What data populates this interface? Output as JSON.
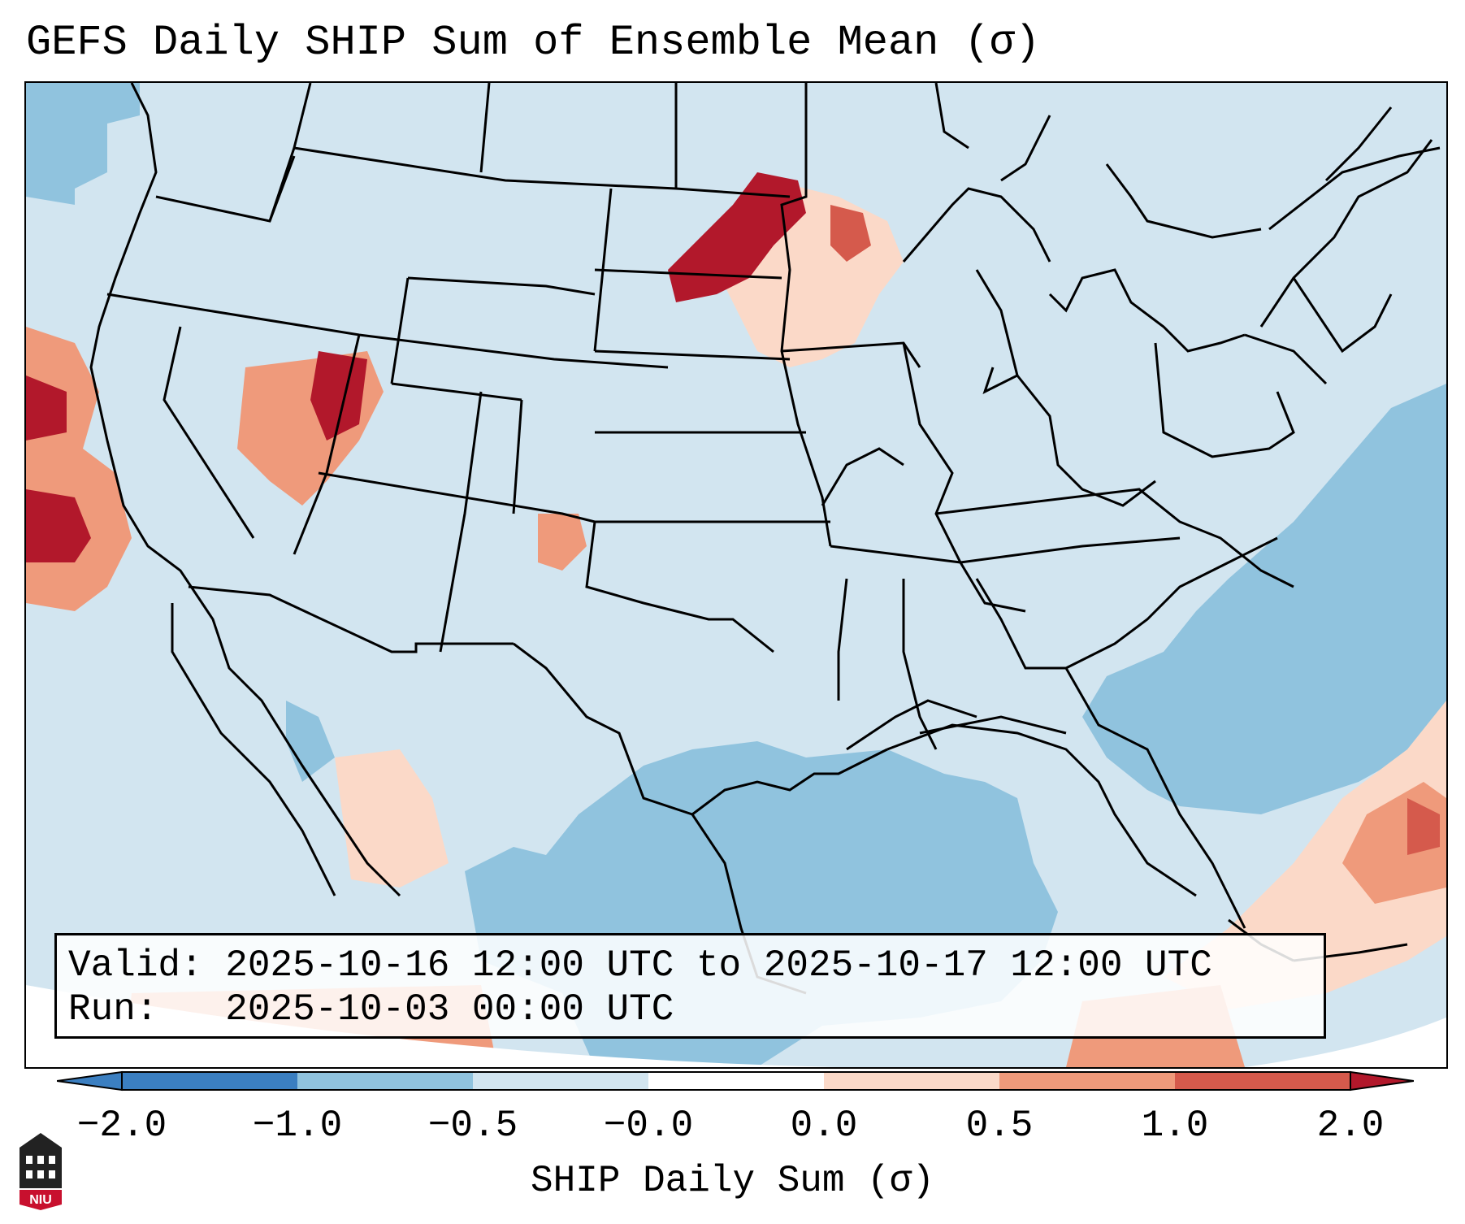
{
  "title": "GEFS Daily SHIP Sum of Ensemble Mean (σ)",
  "info": {
    "valid_label": "Valid:",
    "valid_value": "2025-10-16 12:00 UTC to 2025-10-17 12:00 UTC",
    "run_label": "Run:",
    "run_value": "2025-10-03 00:00 UTC"
  },
  "colorbar": {
    "ticks": [
      "−2.0",
      "−1.0",
      "−0.5",
      "−0.0",
      "0.0",
      "0.5",
      "1.0",
      "2.0"
    ],
    "label": "SHIP Daily Sum (σ)",
    "colors": [
      "#3b7fc1",
      "#90c3de",
      "#d2e5f0",
      "#fbd9c8",
      "#ef9a7b",
      "#d55a4c",
      "#b2182b"
    ]
  },
  "map": {
    "background_color": "#d2e5f0",
    "regions": [
      {
        "name": "Pacific Northwest (offshore)",
        "value": -1.0,
        "color": "#90c3de"
      },
      {
        "name": "Minnesota / Dakotas",
        "value": 2.0,
        "color": "#b2182b"
      },
      {
        "name": "Northern Utah",
        "value": 1.5,
        "color": "#b2182b"
      },
      {
        "name": "Southern California Pacific",
        "value": 1.5,
        "color": "#b2182b"
      },
      {
        "name": "Gulf of Mexico",
        "value": -1.0,
        "color": "#90c3de"
      },
      {
        "name": "Western Atlantic",
        "value": -1.0,
        "color": "#90c3de"
      },
      {
        "name": "Caribbean",
        "value": 1.0,
        "color": "#ef9a7b"
      }
    ]
  },
  "logo": {
    "text": "NIU",
    "color": "#c8102e"
  }
}
